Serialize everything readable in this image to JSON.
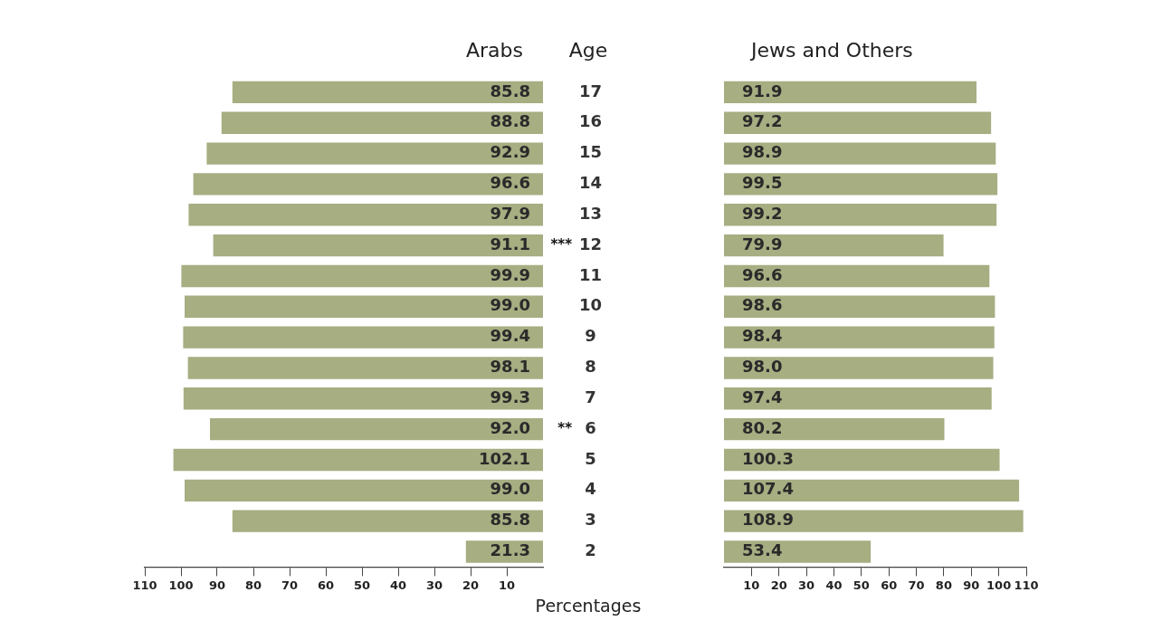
{
  "chart_data": [
    {
      "type": "bar",
      "orientation": "horizontal",
      "title": "Arabs",
      "ylabel": "Age",
      "xlabel": "Percentages",
      "categories": [
        "17",
        "16",
        "15",
        "14",
        "13",
        "12",
        "11",
        "10",
        "9",
        "8",
        "7",
        "6",
        "5",
        "4",
        "3",
        "2"
      ],
      "series": [
        {
          "color": "#a6ae82",
          "values": [
            85.8,
            88.8,
            92.9,
            96.6,
            97.9,
            91.1,
            99.9,
            99.0,
            99.4,
            98.1,
            99.3,
            92.0,
            102.1,
            99.0,
            85.8,
            21.3
          ]
        }
      ],
      "value_labels": [
        "85.8",
        "88.8",
        "92.9",
        "96.6",
        "97.9",
        "91.1",
        "99.9",
        "99.0",
        "99.4",
        "98.1",
        "99.3",
        "92.0",
        "102.1",
        "99.0",
        "85.8",
        "21.3"
      ],
      "xlim": [
        110,
        0
      ],
      "xticks": [
        110,
        100,
        90,
        80,
        70,
        60,
        50,
        40,
        30,
        20,
        10
      ],
      "grid": false,
      "legend": false,
      "annotations": [
        "***",
        "**"
      ]
    },
    {
      "type": "bar",
      "orientation": "horizontal",
      "title": "Jews and Others",
      "categories": [
        "17",
        "16",
        "15",
        "14",
        "13",
        "12",
        "11",
        "10",
        "9",
        "8",
        "7",
        "6",
        "5",
        "4",
        "3",
        "2"
      ],
      "series": [
        {
          "color": "#a6ae82",
          "values": [
            91.9,
            97.2,
            98.9,
            99.5,
            99.2,
            79.9,
            96.6,
            98.6,
            98.4,
            98.0,
            97.4,
            80.2,
            100.3,
            107.4,
            108.9,
            53.4
          ]
        }
      ],
      "value_labels": [
        "91.9",
        "97.2",
        "98.9",
        "99.5",
        "99.2",
        "79.9",
        "96.6",
        "98.6",
        "98.4",
        "98.0",
        "97.4",
        "80.2",
        "100.3",
        "107.4",
        "108.9",
        "53.4"
      ],
      "xlim": [
        0,
        110
      ],
      "xticks": [
        10,
        20,
        30,
        40,
        50,
        60,
        70,
        80,
        90,
        100,
        110
      ],
      "grid": false,
      "legend": false,
      "tick_labels": "x"
    }
  ]
}
